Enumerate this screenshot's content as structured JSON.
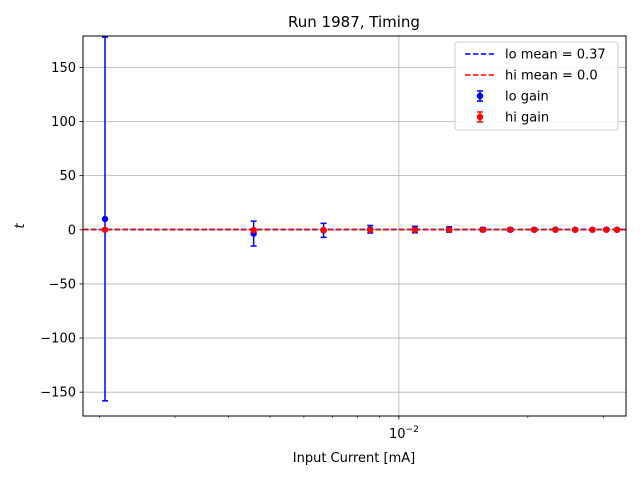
{
  "chart_data": {
    "type": "scatter",
    "title": "Run 1987, Timing",
    "xlabel": "Input Current [mA]",
    "ylabel": "t",
    "xscale": "log",
    "xlim": [
      0.00183,
      0.0339
    ],
    "ylim": [
      -172,
      179
    ],
    "yticks": [
      -150,
      -100,
      -50,
      0,
      50,
      100,
      150
    ],
    "ytick_labels": [
      "−150",
      "−100",
      "−50",
      "0",
      "50",
      "100",
      "150"
    ],
    "xticks_major": [
      0.01
    ],
    "xtick_major_labels": [
      "10",
      "−2"
    ],
    "xticks_minor": [
      0.002,
      0.003,
      0.004,
      0.005,
      0.006,
      0.007,
      0.008,
      0.009,
      0.02,
      0.03
    ],
    "grid": true,
    "legend_position": "top-right",
    "hlines": [
      {
        "label": "lo mean = 0.37",
        "y": 0.37,
        "color": "#0000ff",
        "style": "dashed"
      },
      {
        "label": "hi mean = 0.0",
        "y": 0.0,
        "color": "#ff0000",
        "style": "dashed"
      }
    ],
    "series": [
      {
        "name": "lo gain",
        "color": "#0000ff",
        "x": [
          0.00206,
          0.00458,
          0.00667,
          0.00857,
          0.0109,
          0.0131,
          0.0157,
          0.0182,
          0.0207,
          0.0232,
          0.0258,
          0.0283,
          0.0305,
          0.0323
        ],
        "y": [
          10,
          -3.5,
          -0.5,
          0.5,
          0.2,
          0.3,
          0.2,
          0.1,
          0.1,
          0.2,
          0.1,
          0.1,
          0.2,
          0.1
        ],
        "yerr": [
          168,
          11.5,
          6.5,
          3.5,
          3,
          2.5,
          1.8,
          1.5,
          1.3,
          1.1,
          1,
          1,
          1,
          0.9
        ]
      },
      {
        "name": "hi gain",
        "color": "#ff0000",
        "x": [
          0.00206,
          0.00458,
          0.00667,
          0.00857,
          0.0109,
          0.0131,
          0.0157,
          0.0182,
          0.0207,
          0.0232,
          0.0258,
          0.0283,
          0.0305,
          0.0323
        ],
        "y": [
          0,
          -0.3,
          -0.2,
          -0.1,
          -0.1,
          -0.1,
          0,
          0,
          0,
          0,
          0,
          0,
          0,
          0
        ],
        "yerr": [
          0.6,
          0.6,
          0.5,
          0.5,
          0.5,
          0.5,
          0.4,
          0.4,
          0.4,
          0.4,
          0.4,
          0.4,
          0.4,
          0.4
        ]
      }
    ]
  }
}
